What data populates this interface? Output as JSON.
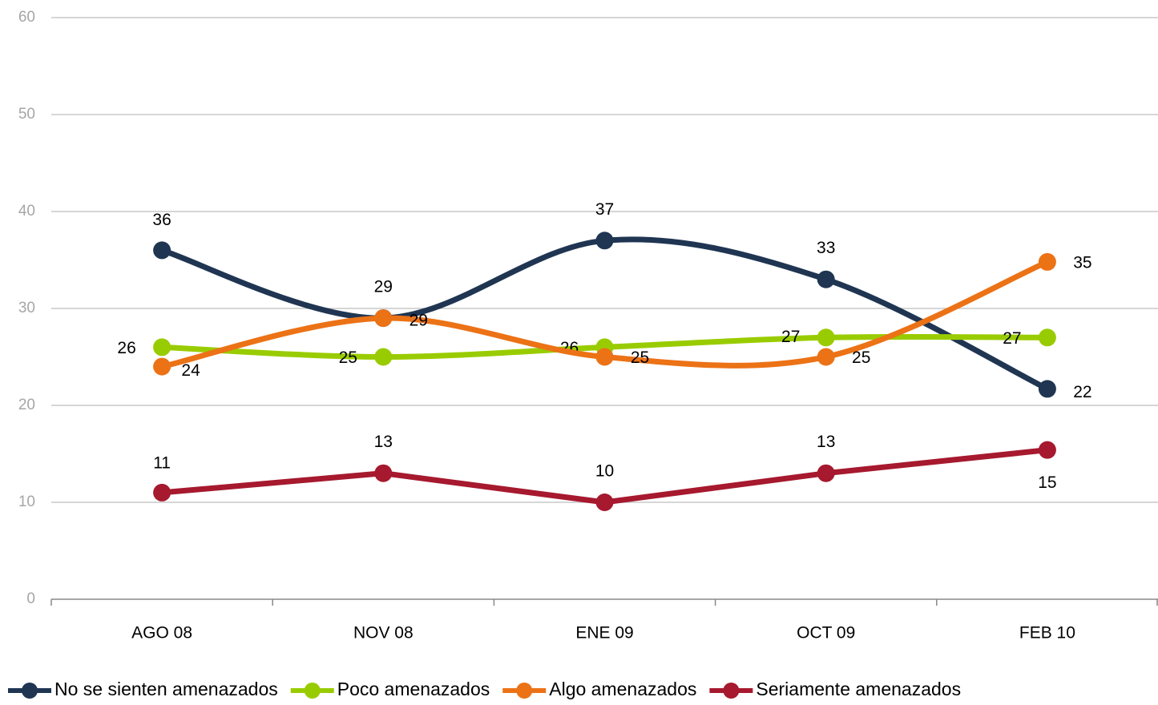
{
  "chart_data": {
    "type": "line",
    "categories": [
      "AGO 08",
      "NOV 08",
      "ENE 09",
      "OCT 09",
      "FEB 10"
    ],
    "series": [
      {
        "name": "No se sienten amenazados",
        "color": "#1f3552",
        "smooth": true,
        "values": [
          36,
          29,
          37,
          33,
          21.7
        ],
        "value_labels": [
          "36",
          "29",
          "37",
          "33",
          "22"
        ]
      },
      {
        "name": "Poco amenazados",
        "color": "#99cc00",
        "smooth": true,
        "values": [
          26,
          25,
          26,
          27,
          27
        ]
      },
      {
        "name": "Algo amenazados",
        "color": "#ec7216",
        "smooth": true,
        "values": [
          24,
          29,
          25,
          25,
          34.8
        ],
        "value_labels": [
          "24",
          "29",
          "25",
          "25",
          "35"
        ]
      },
      {
        "name": "Seriamente amenazados",
        "color": "#a6192e",
        "smooth": false,
        "values": [
          11,
          13,
          10,
          13,
          15.4
        ],
        "value_labels": [
          "11",
          "13",
          "10",
          "13",
          "15"
        ]
      }
    ],
    "ylim": [
      0,
      60
    ],
    "yticks": [
      0,
      10,
      20,
      30,
      40,
      50,
      60
    ],
    "grid": true,
    "legend": "bottom"
  }
}
